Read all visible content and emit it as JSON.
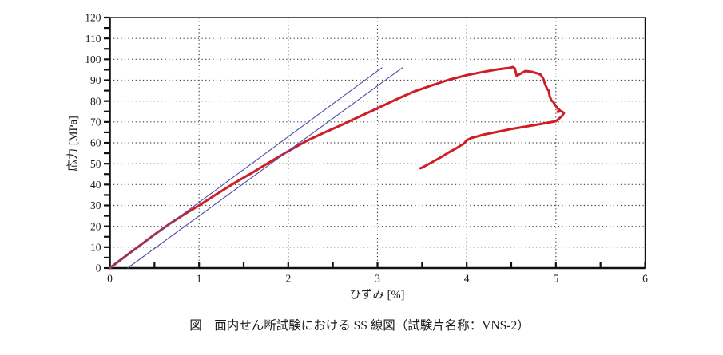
{
  "figure": {
    "caption": "図　面内せん断試験における SS 線図（試験片名称：VNS-2）"
  },
  "chart_data": {
    "type": "line",
    "title": "",
    "xlabel": "ひずみ [%]",
    "ylabel": "応力 [MPa]",
    "xlim": [
      0,
      6
    ],
    "ylim": [
      0,
      120
    ],
    "x_tick_labels": [
      0,
      1,
      2,
      3,
      4,
      5,
      6
    ],
    "x_minor_tick_step": 0.5,
    "y_tick_labels": [
      0,
      10,
      20,
      30,
      40,
      50,
      60,
      70,
      80,
      90,
      100,
      110,
      120
    ],
    "y_minor_tick_step": 5,
    "grid": {
      "style": "dotted",
      "x_values": [
        1,
        2,
        3,
        4,
        5
      ],
      "y_values": [
        10,
        20,
        30,
        40,
        50,
        60,
        70,
        80,
        90,
        100,
        110
      ],
      "color": "#3c3c3c"
    },
    "legend": "none",
    "colors": {
      "curve": "#cf1e26",
      "modulus_lines": "#4d4dae",
      "frame": "#111111"
    },
    "series": [
      {
        "name": "ss-curve",
        "label": "SS curve (VNS-2)",
        "color": "#cf1e26",
        "width": 3,
        "points": [
          [
            0,
            0
          ],
          [
            0.16,
            5.2
          ],
          [
            0.33,
            10.6
          ],
          [
            0.5,
            16
          ],
          [
            0.66,
            20.9
          ],
          [
            0.83,
            25.6
          ],
          [
            1.0,
            30
          ],
          [
            1.2,
            35.5
          ],
          [
            1.4,
            40.8
          ],
          [
            1.6,
            45.8
          ],
          [
            1.8,
            51
          ],
          [
            2.0,
            56
          ],
          [
            2.2,
            60.8
          ],
          [
            2.4,
            64.8
          ],
          [
            2.6,
            68.6
          ],
          [
            2.8,
            72.6
          ],
          [
            3.0,
            76.5
          ],
          [
            3.2,
            80.6
          ],
          [
            3.4,
            84.4
          ],
          [
            3.6,
            87.4
          ],
          [
            3.8,
            90.2
          ],
          [
            4.0,
            92.4
          ],
          [
            4.2,
            94.1
          ],
          [
            4.35,
            95.2
          ],
          [
            4.48,
            95.9
          ],
          [
            4.52,
            96.3
          ],
          [
            4.54,
            95.6
          ],
          [
            4.56,
            92.1
          ],
          [
            4.61,
            93.3
          ],
          [
            4.66,
            94.4
          ],
          [
            4.73,
            94.0
          ],
          [
            4.79,
            93.3
          ],
          [
            4.83,
            92.6
          ],
          [
            4.86,
            90.6
          ],
          [
            4.88,
            88.0
          ],
          [
            4.9,
            86.0
          ],
          [
            4.92,
            84.9
          ],
          [
            4.93,
            82.4
          ],
          [
            4.95,
            80.2
          ],
          [
            4.97,
            79.6
          ],
          [
            4.99,
            78.2
          ],
          [
            5.02,
            76.4
          ],
          [
            5.04,
            75.8
          ],
          [
            5.02,
            74.8
          ],
          [
            5.06,
            75.2
          ],
          [
            5.09,
            74.3
          ],
          [
            5.07,
            72.9
          ],
          [
            5.03,
            71.4
          ],
          [
            5.0,
            70.3
          ],
          [
            4.92,
            69.7
          ],
          [
            4.8,
            68.8
          ],
          [
            4.65,
            67.7
          ],
          [
            4.5,
            66.6
          ],
          [
            4.35,
            65.3
          ],
          [
            4.2,
            64.0
          ],
          [
            4.12,
            63.1
          ],
          [
            4.05,
            62.3
          ],
          [
            4.0,
            61.2
          ],
          [
            3.97,
            59.7
          ],
          [
            3.94,
            58.9
          ],
          [
            3.88,
            57.3
          ],
          [
            3.8,
            55.4
          ],
          [
            3.72,
            53.3
          ],
          [
            3.64,
            51.4
          ],
          [
            3.56,
            49.5
          ],
          [
            3.5,
            48.1
          ],
          [
            3.48,
            47.8
          ]
        ]
      },
      {
        "name": "modulus-line-1",
        "label": "modulus line",
        "color": "#4d4dae",
        "width": 1.1,
        "points": [
          [
            0,
            0
          ],
          [
            3.05,
            96
          ]
        ]
      },
      {
        "name": "modulus-line-2",
        "label": "offset modulus line",
        "color": "#4d4dae",
        "width": 1.1,
        "points": [
          [
            0.2,
            0
          ],
          [
            3.28,
            96
          ]
        ]
      }
    ]
  }
}
